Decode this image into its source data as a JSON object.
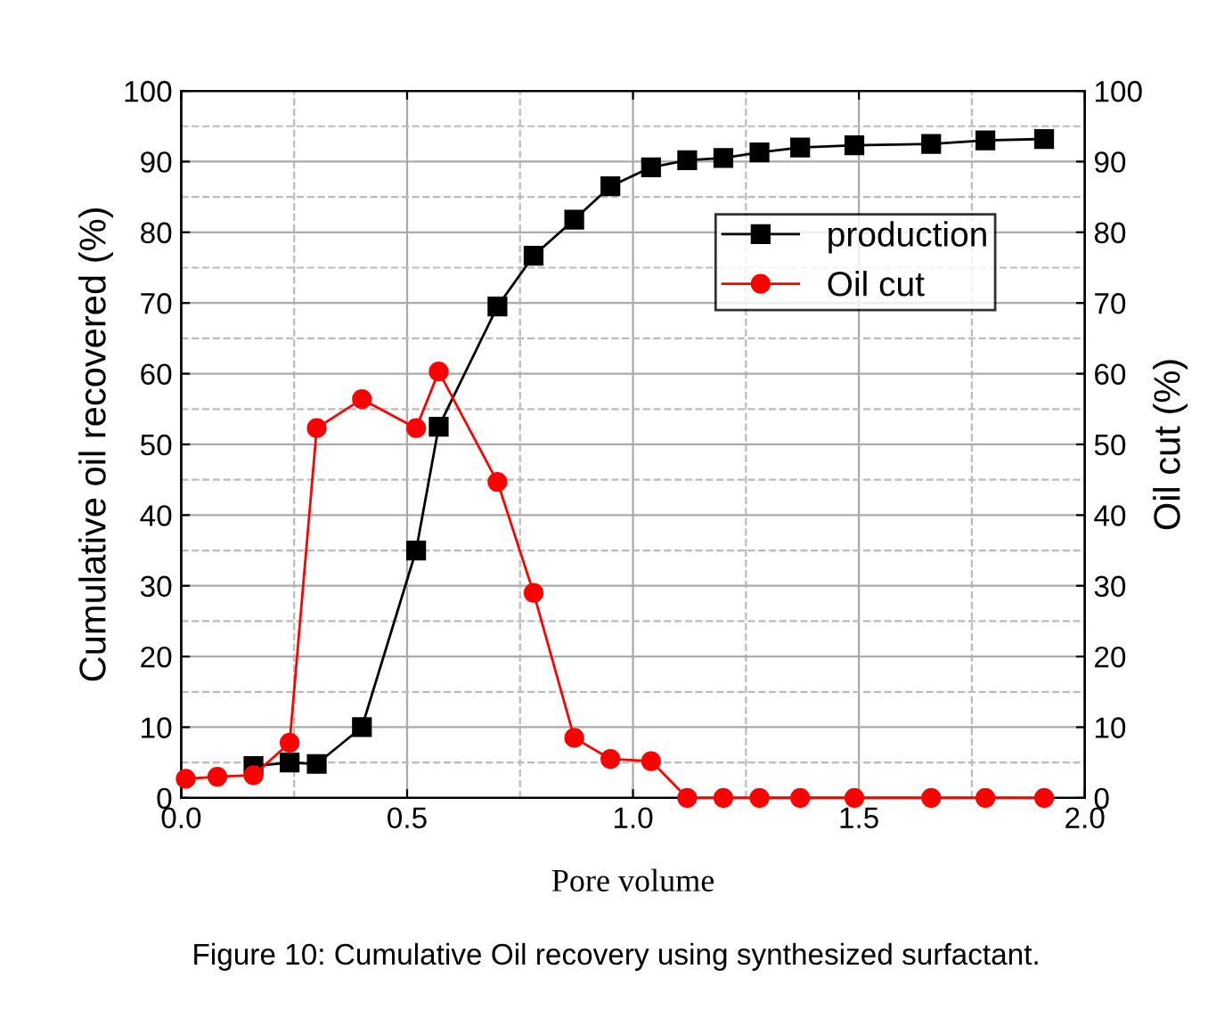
{
  "chart_data": {
    "type": "line",
    "xlabel": "Pore volume",
    "ylabel": "Cumulative oil recovered (%)",
    "y2label": "Oil cut (%)",
    "xlim": [
      0.0,
      2.0
    ],
    "xticks": [
      {
        "value": 0,
        "label": "0.0"
      },
      0.5,
      {
        "value": 1,
        "label": "1.0"
      },
      1.5,
      {
        "value": 2,
        "label": "2.0"
      }
    ],
    "ylim": [
      0,
      100
    ],
    "yticks": [
      0,
      10,
      20,
      30,
      40,
      50,
      60,
      70,
      80,
      90,
      100
    ],
    "y2lim": [
      0,
      100
    ],
    "y2ticks": [
      0,
      10,
      20,
      30,
      40,
      50,
      60,
      70,
      80,
      90,
      100
    ],
    "grid": true,
    "legend": "top right",
    "series": [
      {
        "name": "production",
        "color": "#000000",
        "marker": "square",
        "x": [
          0.16,
          0.24,
          0.3,
          0.4,
          0.52,
          0.57,
          0.7,
          0.78,
          0.87,
          0.95,
          1.04,
          1.12,
          1.2,
          1.28,
          1.37,
          1.49,
          1.66,
          1.78,
          1.91
        ],
        "values": [
          4.5,
          5,
          4.8,
          10,
          35,
          52.5,
          69.5,
          76.7,
          81.8,
          86.5,
          89.2,
          90.2,
          90.5,
          91.3,
          92,
          92.3,
          92.5,
          93,
          93.2
        ]
      },
      {
        "name": "Oil cut",
        "color": "#ff0000",
        "marker": "circle",
        "axis": "y2",
        "x": [
          0.01,
          0.08,
          0.16,
          0.24,
          0.3,
          0.4,
          0.52,
          0.57,
          0.7,
          0.78,
          0.87,
          0.95,
          1.04,
          1.12,
          1.2,
          1.28,
          1.37,
          1.49,
          1.66,
          1.78,
          1.91
        ],
        "values": [
          2.7,
          3,
          3.2,
          7.8,
          52.3,
          56.4,
          52.3,
          60.3,
          44.7,
          29,
          8.5,
          5.5,
          5.2,
          0,
          0,
          0,
          0,
          0,
          0,
          0,
          0
        ]
      }
    ],
    "annotations": [
      "Figure 10: Cumulative Oil recovery using synthesized surfactant."
    ]
  }
}
